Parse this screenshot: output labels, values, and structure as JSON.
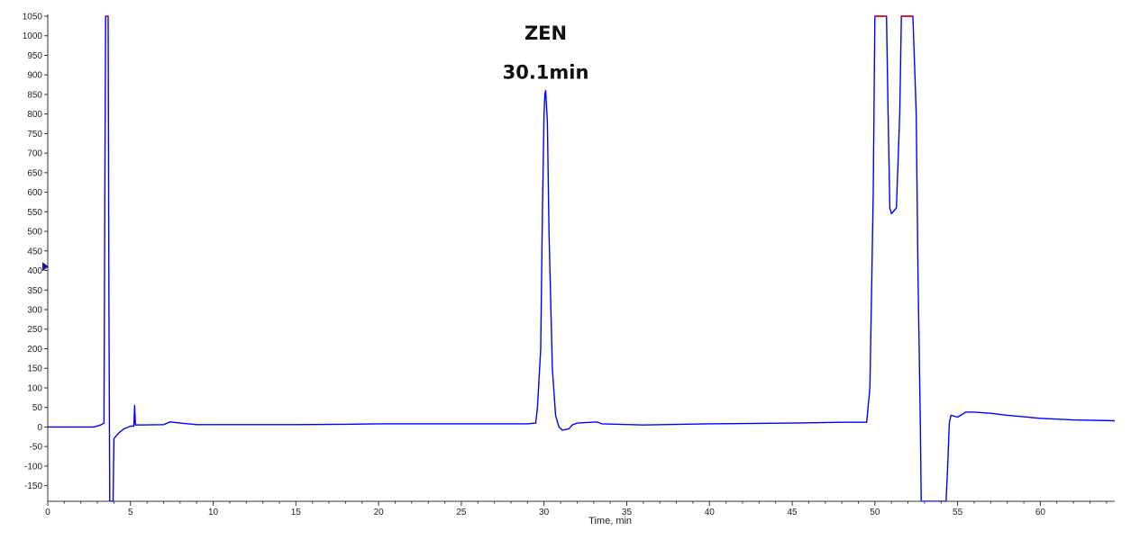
{
  "chart_data": {
    "type": "line",
    "title": "",
    "xlabel": "Time, min",
    "ylabel": "",
    "xlim": [
      0,
      64.5
    ],
    "ylim": [
      -190,
      1050
    ],
    "grid": false,
    "line_color": "#0000ff",
    "clip_color": "#ff0000",
    "x_ticks": [
      0,
      5,
      10,
      15,
      20,
      25,
      30,
      35,
      40,
      45,
      50,
      55,
      60
    ],
    "y_ticks": [
      -150,
      -100,
      -50,
      0,
      50,
      100,
      150,
      200,
      250,
      300,
      350,
      400,
      450,
      500,
      550,
      600,
      650,
      700,
      750,
      800,
      850,
      900,
      950,
      1000,
      1050
    ],
    "annotations": [
      {
        "text": "ZEN",
        "x": 30.1,
        "y": 990
      },
      {
        "text": "30.1min",
        "x": 30.1,
        "y": 890
      }
    ],
    "series": [
      {
        "points": [
          [
            0,
            0
          ],
          [
            2.8,
            0
          ],
          [
            3.2,
            5
          ],
          [
            3.4,
            10
          ],
          [
            3.45,
            600
          ],
          [
            3.5,
            1050
          ],
          [
            3.65,
            1050
          ],
          [
            3.7,
            300
          ],
          [
            3.75,
            -190
          ],
          [
            3.95,
            -190
          ],
          [
            4.0,
            -30
          ],
          [
            4.3,
            -15
          ],
          [
            4.6,
            -5
          ],
          [
            5.0,
            2
          ],
          [
            5.2,
            2
          ],
          [
            5.25,
            55
          ],
          [
            5.3,
            5
          ],
          [
            5.6,
            5
          ],
          [
            7.0,
            6
          ],
          [
            7.4,
            13
          ],
          [
            8.0,
            10
          ],
          [
            9.0,
            6
          ],
          [
            12,
            6
          ],
          [
            15,
            6
          ],
          [
            18,
            7
          ],
          [
            20,
            8
          ],
          [
            23,
            8
          ],
          [
            26,
            8
          ],
          [
            29,
            8
          ],
          [
            29.5,
            10
          ],
          [
            29.6,
            50
          ],
          [
            29.8,
            200
          ],
          [
            29.9,
            550
          ],
          [
            30.0,
            800
          ],
          [
            30.05,
            850
          ],
          [
            30.1,
            860
          ],
          [
            30.2,
            780
          ],
          [
            30.3,
            500
          ],
          [
            30.5,
            150
          ],
          [
            30.7,
            30
          ],
          [
            30.9,
            0
          ],
          [
            31.1,
            -8
          ],
          [
            31.5,
            -5
          ],
          [
            31.7,
            5
          ],
          [
            32.0,
            10
          ],
          [
            33.2,
            13
          ],
          [
            33.5,
            8
          ],
          [
            36,
            5
          ],
          [
            40,
            8
          ],
          [
            45,
            10
          ],
          [
            48,
            12
          ],
          [
            49.5,
            12
          ],
          [
            49.7,
            100
          ],
          [
            49.9,
            600
          ],
          [
            50.0,
            1050
          ],
          [
            50.7,
            1050
          ],
          [
            50.8,
            800
          ],
          [
            50.9,
            560
          ],
          [
            51.0,
            545
          ],
          [
            51.3,
            560
          ],
          [
            51.5,
            800
          ],
          [
            51.6,
            1050
          ],
          [
            52.3,
            1050
          ],
          [
            52.5,
            800
          ],
          [
            52.6,
            400
          ],
          [
            52.75,
            0
          ],
          [
            52.8,
            -190
          ],
          [
            54.3,
            -190
          ],
          [
            54.4,
            -100
          ],
          [
            54.5,
            10
          ],
          [
            54.6,
            30
          ],
          [
            55.0,
            25
          ],
          [
            55.5,
            38
          ],
          [
            56.0,
            38
          ],
          [
            57,
            35
          ],
          [
            58,
            30
          ],
          [
            60,
            22
          ],
          [
            62,
            18
          ],
          [
            64.5,
            16
          ]
        ]
      }
    ],
    "clipped_ranges": [
      [
        3.5,
        3.65
      ],
      [
        50.0,
        50.7
      ],
      [
        51.6,
        52.3
      ]
    ],
    "marker_y": 410
  }
}
